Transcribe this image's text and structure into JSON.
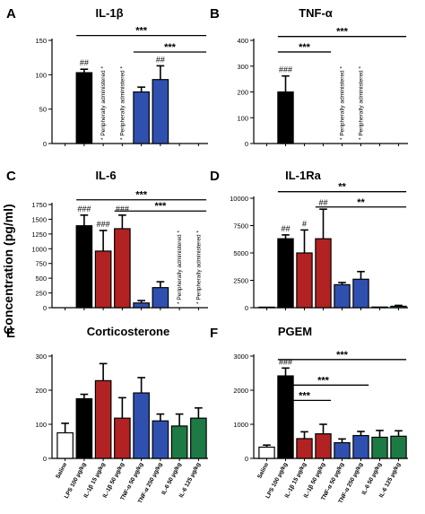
{
  "y_axis_label": "Concentration (pg/ml)",
  "group_labels": [
    "Saline",
    "LPS 100 µg/kg",
    "IL-1β 15 µg/kg",
    "IL-1β 50 µg/kg",
    "TNF-α 50 µg/kg",
    "TNF-α 250 µg/kg",
    "IL-6 50 µg/kg",
    "IL-6 125 µg/kg"
  ],
  "colors": {
    "saline": "#ffffff",
    "lps": "#000000",
    "il1b": "#b22222",
    "tnfa": "#3050b0",
    "il6": "#1e7a45"
  },
  "chart_data": [
    {
      "type": "bar",
      "panel_letter": "A",
      "title": "IL-1β",
      "categories": [
        "Saline",
        "LPS 100 µg/kg",
        "IL-1β 15 µg/kg",
        "IL-1β 50 µg/kg",
        "TNF-α 50 µg/kg",
        "TNF-α 250 µg/kg",
        "IL-6 50 µg/kg",
        "IL-6 125 µg/kg"
      ],
      "values": [
        0,
        103,
        null,
        null,
        75,
        93,
        0,
        0
      ],
      "errors": [
        0,
        5,
        0,
        0,
        7,
        20,
        0,
        0
      ],
      "colors": [
        "#ffffff",
        "#000000",
        "#b22222",
        "#b22222",
        "#3050b0",
        "#3050b0",
        "#1e7a45",
        "#1e7a45"
      ],
      "ylim": [
        0,
        150
      ],
      "yticks": [
        0,
        50,
        100,
        150
      ],
      "bar_labels": [
        {
          "index": 1,
          "text": "##"
        },
        {
          "index": 5,
          "text": "##"
        }
      ],
      "vertical_notes": [
        {
          "index": 2,
          "text": "* Peripherally administered *"
        },
        {
          "index": 3,
          "text": "* Peripherally administered *"
        }
      ],
      "significance": [
        {
          "from": 1,
          "to": 7,
          "level": 157,
          "text": "***"
        },
        {
          "from": 4,
          "to": 7,
          "level": 133,
          "text": "***"
        }
      ]
    },
    {
      "type": "bar",
      "panel_letter": "B",
      "title": "TNF-α",
      "categories": [
        "Saline",
        "LPS 100 µg/kg",
        "IL-1β 15 µg/kg",
        "IL-1β 50 µg/kg",
        "TNF-α 50 µg/kg",
        "TNF-α 250 µg/kg",
        "IL-6 50 µg/kg",
        "IL-6 125 µg/kg"
      ],
      "values": [
        0,
        200,
        0,
        0,
        null,
        null,
        0,
        0
      ],
      "errors": [
        0,
        62,
        0,
        0,
        0,
        0,
        0,
        0
      ],
      "colors": [
        "#ffffff",
        "#000000",
        "#b22222",
        "#b22222",
        "#3050b0",
        "#3050b0",
        "#1e7a45",
        "#1e7a45"
      ],
      "ylim": [
        0,
        400
      ],
      "yticks": [
        0,
        100,
        200,
        300,
        400
      ],
      "bar_labels": [
        {
          "index": 1,
          "text": "###"
        }
      ],
      "vertical_notes": [
        {
          "index": 4,
          "text": "* Peripherally administered *"
        },
        {
          "index": 5,
          "text": "* Peripherally administered *"
        }
      ],
      "significance": [
        {
          "from": 1,
          "to": 7,
          "level": 415,
          "text": "***"
        },
        {
          "from": 1,
          "to": 3,
          "level": 355,
          "text": "***"
        }
      ]
    },
    {
      "type": "bar",
      "panel_letter": "C",
      "title": "IL-6",
      "categories": [
        "Saline",
        "LPS 100 µg/kg",
        "IL-1β 15 µg/kg",
        "IL-1β 50 µg/kg",
        "TNF-α 50 µg/kg",
        "TNF-α 250 µg/kg",
        "IL-6 50 µg/kg",
        "IL-6 125 µg/kg"
      ],
      "values": [
        0,
        1390,
        960,
        1340,
        80,
        340,
        null,
        null
      ],
      "errors": [
        0,
        180,
        350,
        230,
        40,
        100,
        0,
        0
      ],
      "colors": [
        "#ffffff",
        "#000000",
        "#b22222",
        "#b22222",
        "#3050b0",
        "#3050b0",
        "#1e7a45",
        "#1e7a45"
      ],
      "ylim": [
        0,
        1750
      ],
      "yticks": [
        0,
        250,
        500,
        750,
        1000,
        1250,
        1500,
        1750
      ],
      "bar_labels": [
        {
          "index": 1,
          "text": "###"
        },
        {
          "index": 2,
          "text": "###"
        },
        {
          "index": 3,
          "text": "###"
        }
      ],
      "vertical_notes": [
        {
          "index": 6,
          "text": "* Peripherally administered *"
        },
        {
          "index": 7,
          "text": "* Peripherally administered *"
        }
      ],
      "significance": [
        {
          "from": 1,
          "to": 7,
          "level": 1830,
          "text": "***"
        },
        {
          "from": 3,
          "to": 7,
          "level": 1640,
          "text": "***"
        }
      ]
    },
    {
      "type": "bar",
      "panel_letter": "D",
      "title": "IL-1Ra",
      "categories": [
        "Saline",
        "LPS 100 µg/kg",
        "IL-1β 15 µg/kg",
        "IL-1β 50 µg/kg",
        "TNF-α 50 µg/kg",
        "TNF-α 250 µg/kg",
        "IL-6 50 µg/kg",
        "IL-6 125 µg/kg"
      ],
      "values": [
        50,
        6300,
        5000,
        6300,
        2100,
        2600,
        60,
        130
      ],
      "errors": [
        0,
        350,
        2100,
        2700,
        200,
        700,
        0,
        80
      ],
      "colors": [
        "#ffffff",
        "#000000",
        "#b22222",
        "#b22222",
        "#3050b0",
        "#3050b0",
        "#1e7a45",
        "#1e7a45"
      ],
      "ylim": [
        0,
        10000
      ],
      "yticks": [
        0,
        2500,
        5000,
        7500,
        10000
      ],
      "bar_labels": [
        {
          "index": 1,
          "text": "##"
        },
        {
          "index": 2,
          "text": "#"
        },
        {
          "index": 3,
          "text": "##"
        }
      ],
      "vertical_notes": [],
      "significance": [
        {
          "from": 1,
          "to": 7,
          "level": 10600,
          "text": "**"
        },
        {
          "from": 3,
          "to": 7,
          "level": 9200,
          "text": "**"
        }
      ]
    },
    {
      "type": "bar",
      "panel_letter": "E",
      "title": "Corticosterone",
      "categories": [
        "Saline",
        "LPS 100 µg/kg",
        "IL-1β 15 µg/kg",
        "IL-1β 50 µg/kg",
        "TNF-α 50 µg/kg",
        "TNF-α 250 µg/kg",
        "IL-6 50 µg/kg",
        "IL-6 125 µg/kg"
      ],
      "values": [
        75,
        175,
        228,
        118,
        192,
        110,
        95,
        118
      ],
      "errors": [
        28,
        13,
        50,
        60,
        45,
        20,
        35,
        30
      ],
      "colors": [
        "#ffffff",
        "#000000",
        "#b22222",
        "#b22222",
        "#3050b0",
        "#3050b0",
        "#1e7a45",
        "#1e7a45"
      ],
      "ylim": [
        0,
        300
      ],
      "yticks": [
        0,
        100,
        200,
        300
      ],
      "bar_labels": [],
      "vertical_notes": [],
      "significance": []
    },
    {
      "type": "bar",
      "panel_letter": "F",
      "title": "PGEM",
      "categories": [
        "Saline",
        "LPS 100 µg/kg",
        "IL-1β 15 µg/kg",
        "IL-1β 50 µg/kg",
        "TNF-α 50 µg/kg",
        "TNF-α 250 µg/kg",
        "IL-6 50 µg/kg",
        "IL-6 125 µg/kg"
      ],
      "values": [
        330,
        2420,
        580,
        720,
        460,
        670,
        620,
        650
      ],
      "errors": [
        60,
        230,
        200,
        280,
        110,
        120,
        200,
        160
      ],
      "colors": [
        "#ffffff",
        "#000000",
        "#b22222",
        "#b22222",
        "#3050b0",
        "#3050b0",
        "#1e7a45",
        "#1e7a45"
      ],
      "ylim": [
        0,
        3000
      ],
      "yticks": [
        0,
        1000,
        2000,
        3000
      ],
      "bar_labels": [
        {
          "index": 1,
          "text": "###"
        }
      ],
      "vertical_notes": [],
      "significance": [
        {
          "from": 1,
          "to": 7,
          "level": 2900,
          "text": "***"
        },
        {
          "from": 1,
          "to": 5,
          "level": 2150,
          "text": "***"
        },
        {
          "from": 1,
          "to": 3,
          "level": 1700,
          "text": "***"
        }
      ]
    }
  ]
}
